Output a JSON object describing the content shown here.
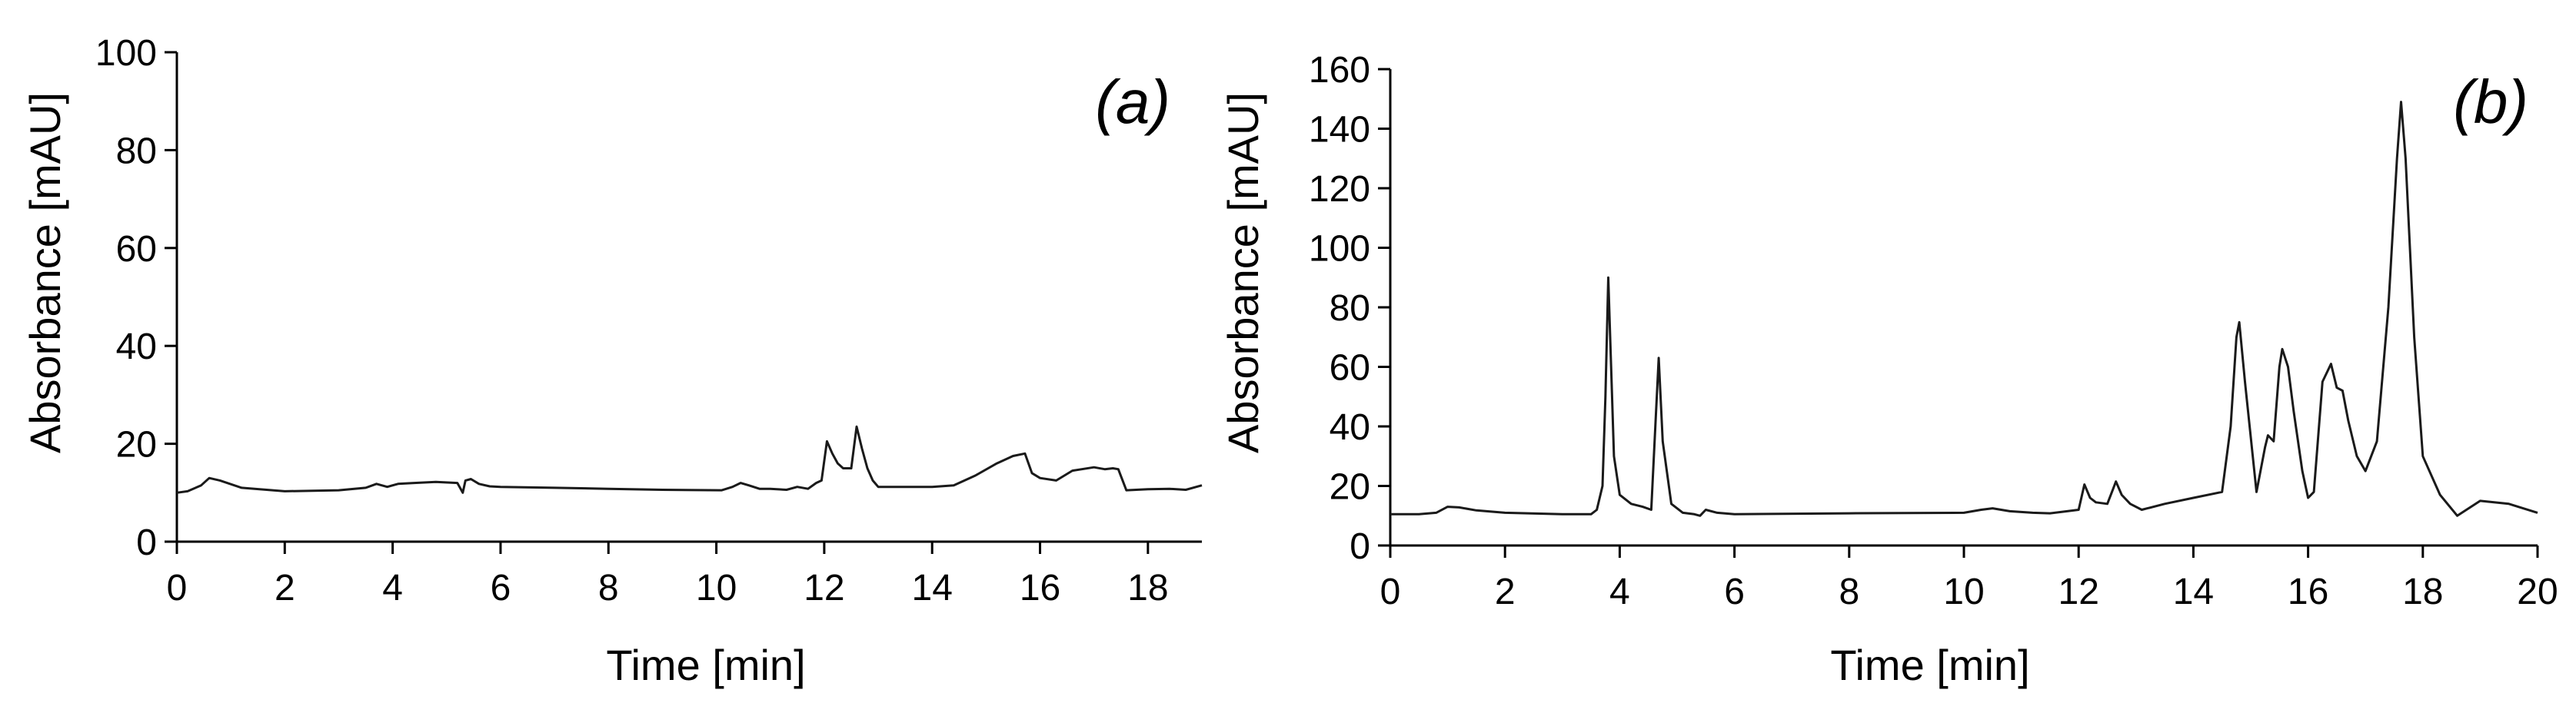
{
  "chart_data": [
    {
      "type": "line",
      "panel_label": "(a)",
      "xlabel": "Time [min]",
      "ylabel": "Absorbance [mAU]",
      "xlim": [
        0,
        19
      ],
      "ylim": [
        0,
        100
      ],
      "xticks": [
        0,
        2,
        4,
        6,
        8,
        10,
        12,
        14,
        16,
        18
      ],
      "yticks": [
        0,
        20,
        40,
        60,
        80,
        100
      ],
      "grid": false,
      "series": [
        {
          "x": [
            0,
            0.2,
            0.45,
            0.6,
            0.8,
            1.2,
            2,
            3,
            3.5,
            3.7,
            3.9,
            4.1,
            4.4,
            4.8,
            5.2,
            5.3,
            5.35,
            5.45,
            5.6,
            5.8,
            6,
            7,
            8,
            9,
            10.1,
            10.3,
            10.45,
            10.6,
            10.8,
            11,
            11.3,
            11.5,
            11.7,
            11.85,
            11.95,
            12.05,
            12.15,
            12.25,
            12.35,
            12.5,
            12.6,
            12.7,
            12.8,
            12.9,
            13,
            13.5,
            14,
            14.4,
            14.8,
            15.2,
            15.5,
            15.72,
            15.85,
            16,
            16.3,
            16.6,
            17,
            17.2,
            17.35,
            17.45,
            17.6,
            18,
            18.4,
            18.7,
            19
          ],
          "y": [
            10,
            10.3,
            11.5,
            13,
            12.5,
            11,
            10.3,
            10.5,
            11,
            11.8,
            11.2,
            11.8,
            12,
            12.2,
            12,
            10,
            12.5,
            12.8,
            11.8,
            11.3,
            11.2,
            11,
            10.8,
            10.6,
            10.5,
            11.2,
            12,
            11.5,
            10.8,
            10.8,
            10.6,
            11.2,
            10.8,
            12,
            12.5,
            20.5,
            18,
            16,
            15,
            15,
            23.5,
            19,
            15,
            12.5,
            11.2,
            11.2,
            11.2,
            11.5,
            13.5,
            16,
            17.5,
            18,
            14,
            13,
            12.5,
            14.5,
            15.2,
            14.8,
            15,
            14.8,
            10.5,
            10.7,
            10.8,
            10.6,
            11.5
          ]
        }
      ]
    },
    {
      "type": "line",
      "panel_label": "(b)",
      "xlabel": "Time [min]",
      "ylabel": "Absorbance [mAU]",
      "xlim": [
        0,
        20
      ],
      "ylim": [
        0,
        160
      ],
      "xticks": [
        0,
        2,
        4,
        6,
        8,
        10,
        12,
        14,
        16,
        18,
        20
      ],
      "yticks": [
        0,
        20,
        40,
        60,
        80,
        100,
        120,
        140,
        160
      ],
      "grid": false,
      "series": [
        {
          "x": [
            0,
            0.5,
            0.8,
            1,
            1.2,
            1.5,
            2,
            3,
            3.5,
            3.6,
            3.7,
            3.75,
            3.8,
            3.85,
            3.9,
            4,
            4.2,
            4.4,
            4.55,
            4.62,
            4.68,
            4.75,
            4.9,
            5.1,
            5.3,
            5.4,
            5.5,
            5.7,
            6,
            8,
            10,
            10.3,
            10.5,
            10.8,
            11.2,
            11.5,
            11.8,
            12,
            12.1,
            12.2,
            12.3,
            12.5,
            12.6,
            12.65,
            12.75,
            12.9,
            13.1,
            13.2,
            13.5,
            14,
            14.5,
            14.65,
            14.75,
            14.8,
            14.9,
            15.1,
            15.25,
            15.3,
            15.4,
            15.5,
            15.55,
            15.65,
            15.75,
            15.9,
            16,
            16.1,
            16.25,
            16.4,
            16.5,
            16.6,
            16.7,
            16.85,
            17,
            17.2,
            17.4,
            17.55,
            17.62,
            17.7,
            17.85,
            18,
            18.3,
            18.6,
            19,
            19.5,
            20
          ],
          "y": [
            10.5,
            10.5,
            11,
            13,
            12.8,
            11.8,
            11,
            10.5,
            10.5,
            12,
            20,
            50,
            90,
            60,
            30,
            17,
            14,
            13,
            12,
            40,
            63,
            35,
            14,
            11,
            10.5,
            10,
            12,
            11,
            10.5,
            10.8,
            11,
            12,
            12.5,
            11.5,
            11,
            10.8,
            11.5,
            12,
            20.5,
            16,
            14.5,
            14,
            19,
            21.5,
            17,
            14,
            12,
            12.5,
            14,
            16,
            18,
            40,
            70,
            75,
            55,
            18,
            33,
            37,
            35,
            60,
            66,
            60,
            45,
            25,
            16,
            18,
            55,
            61,
            53,
            52,
            42,
            30,
            25,
            35,
            80,
            130,
            149,
            130,
            70,
            30,
            17,
            10,
            15,
            14,
            11
          ]
        }
      ]
    }
  ]
}
